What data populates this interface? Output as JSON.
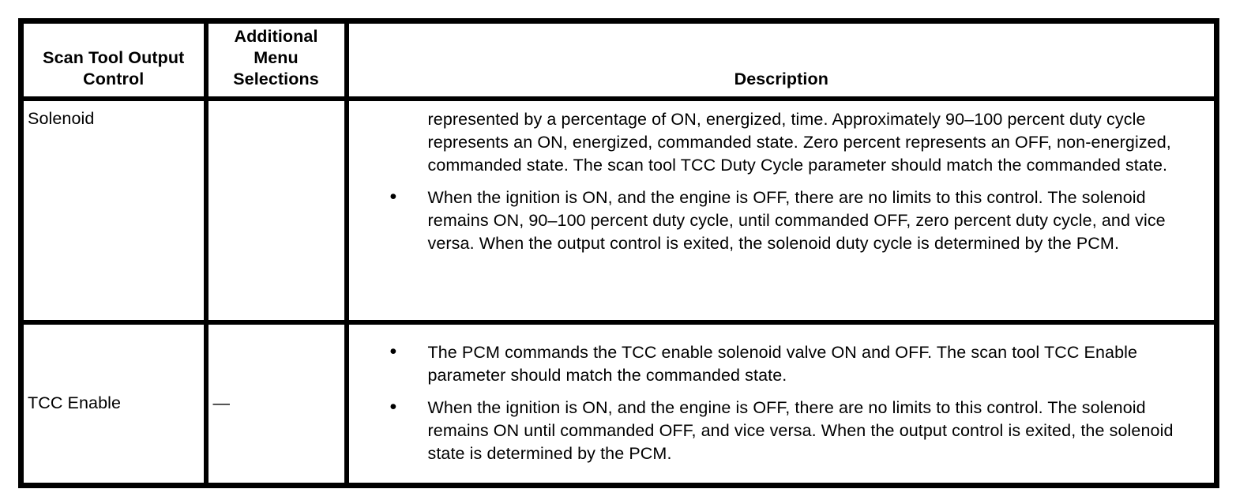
{
  "table": {
    "bullet_glyph": "•",
    "headers": {
      "control": "Scan Tool Output Control",
      "menu": "Additional Menu Selections",
      "description": "Description"
    },
    "rows": [
      {
        "control": "Solenoid",
        "menu": "",
        "description": {
          "intro": "represented by a percentage of ON, energized, time. Approximately 90–100 percent duty cycle represents an ON, energized, commanded state. Zero percent represents an OFF, non-energized, commanded state. The scan tool TCC Duty Cycle parameter should match the commanded state.",
          "bullets": [
            "When the ignition is ON, and the engine is OFF, there are no limits to this control. The solenoid remains ON, 90–100 percent duty cycle, until commanded OFF, zero percent duty cycle, and vice versa. When the output control is exited, the solenoid duty cycle is determined by the PCM."
          ]
        }
      },
      {
        "control": "TCC Enable",
        "menu": "—",
        "description": {
          "bullets": [
            "The PCM commands the TCC enable solenoid valve ON and OFF. The scan tool TCC Enable parameter should match the commanded state.",
            "When the ignition is ON, and the engine is OFF, there are no limits to this control. The solenoid remains ON until commanded OFF, and vice versa. When the output control is exited, the solenoid state is determined by the PCM."
          ]
        }
      }
    ]
  }
}
